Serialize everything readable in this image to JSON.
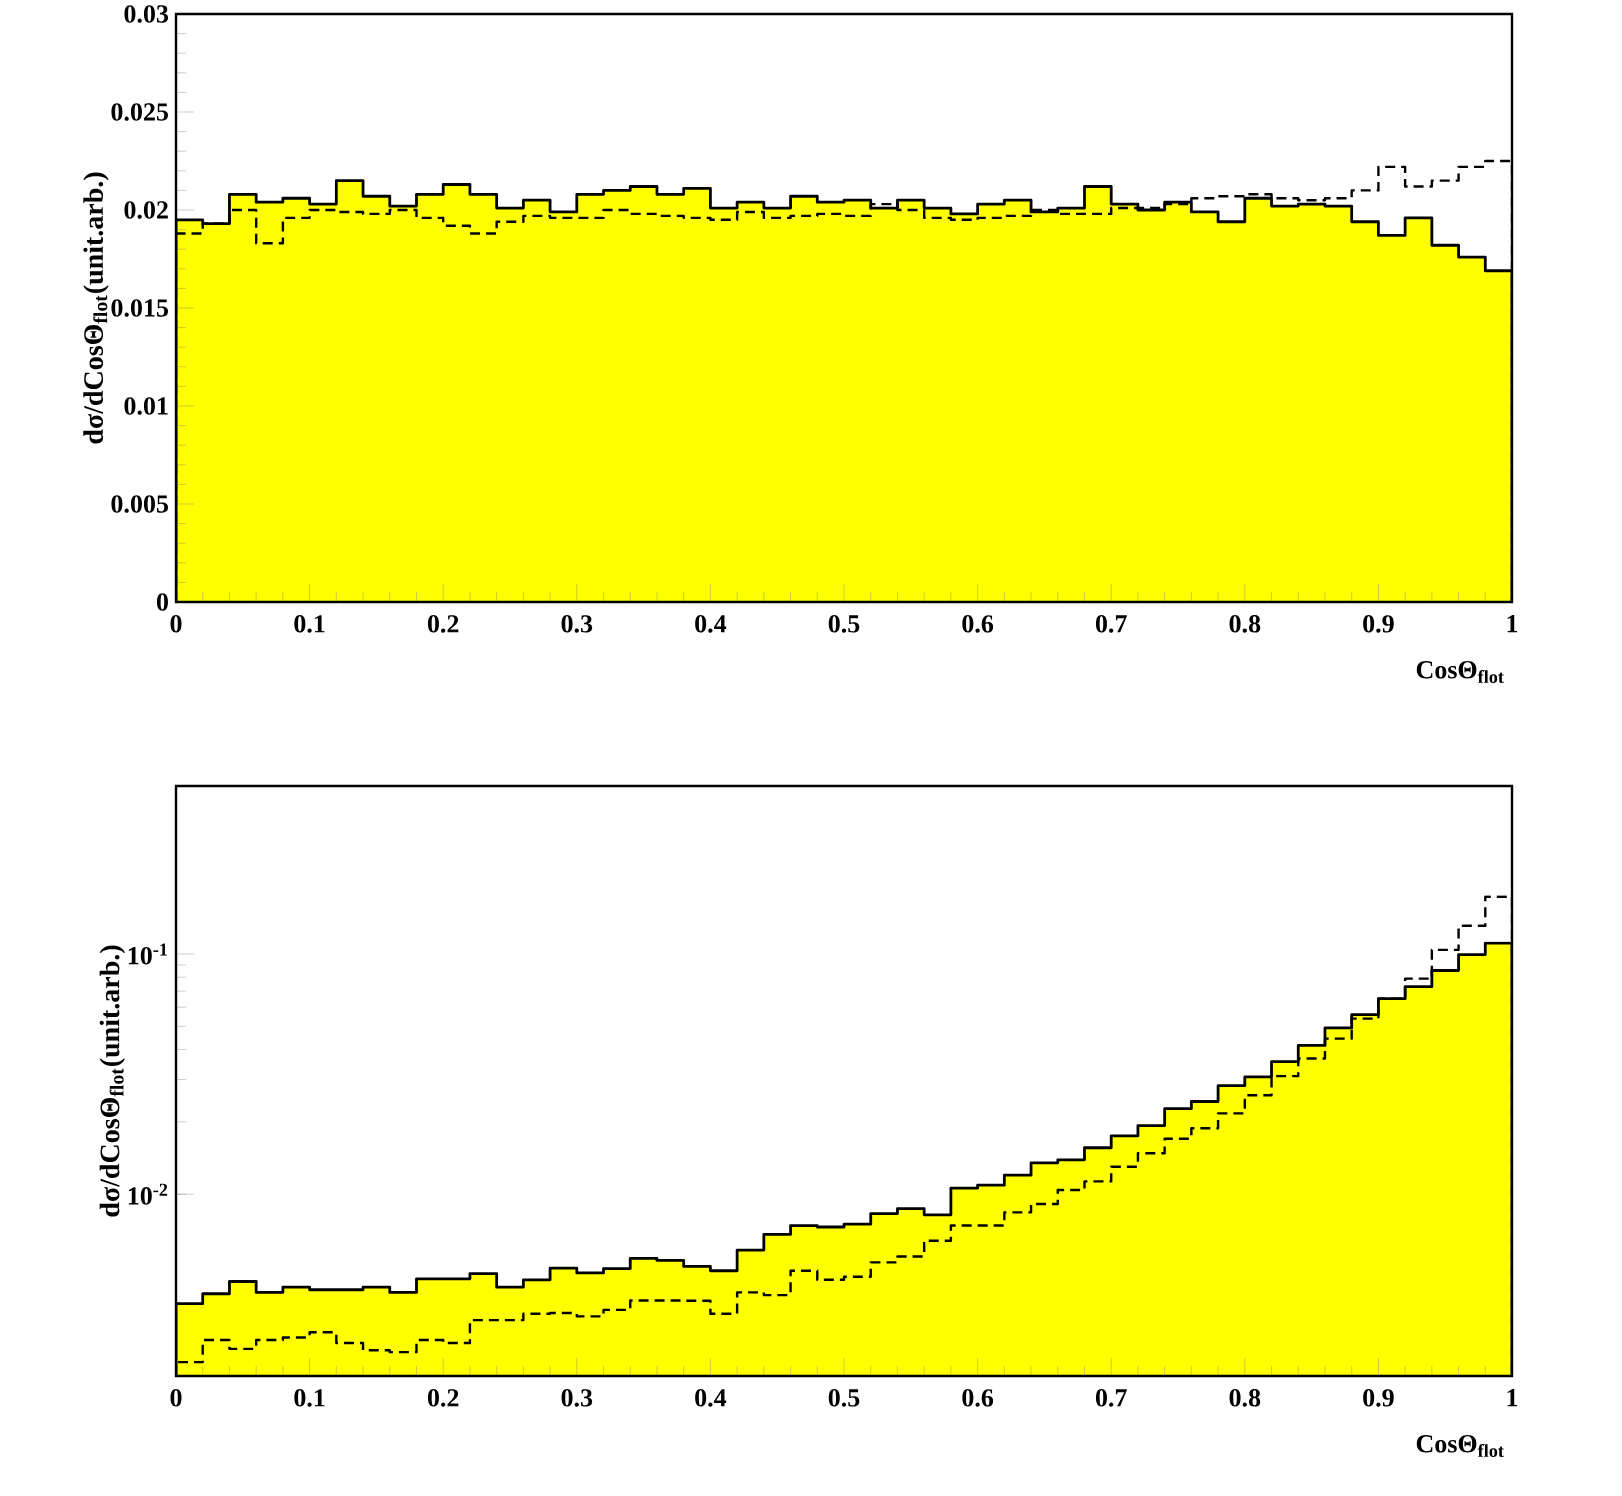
{
  "chart_data": [
    {
      "type": "histogram",
      "xlabel": "CosΘ$_{flot}$",
      "ylabel": "dσ/dCosΘ$_{flot}$(unit.arb.)",
      "bins": [
        0,
        0.02,
        0.04,
        0.06,
        0.08,
        0.1,
        0.12,
        0.14,
        0.16,
        0.18,
        0.2,
        0.22,
        0.24,
        0.26,
        0.28,
        0.3,
        0.32,
        0.34,
        0.36,
        0.38,
        0.4,
        0.42,
        0.44,
        0.46,
        0.48,
        0.5,
        0.52,
        0.54,
        0.56,
        0.58,
        0.6,
        0.62,
        0.64,
        0.66,
        0.68,
        0.7,
        0.72,
        0.74,
        0.76,
        0.78,
        0.8,
        0.82,
        0.84,
        0.86,
        0.88,
        0.9,
        0.92,
        0.94,
        0.96,
        0.98,
        1.0
      ],
      "series": [
        {
          "color": "#ffff00",
          "line_style": "solid",
          "values": [
            0.0195,
            0.0193,
            0.0208,
            0.0204,
            0.0206,
            0.0203,
            0.0215,
            0.0207,
            0.0202,
            0.0208,
            0.0213,
            0.0208,
            0.0201,
            0.0205,
            0.0199,
            0.0208,
            0.021,
            0.0212,
            0.0208,
            0.0211,
            0.0201,
            0.0204,
            0.0201,
            0.0207,
            0.0204,
            0.0205,
            0.0201,
            0.0205,
            0.0201,
            0.0198,
            0.0203,
            0.0205,
            0.0199,
            0.0201,
            0.0212,
            0.0203,
            0.02,
            0.0204,
            0.0199,
            0.0194,
            0.0206,
            0.0202,
            0.0203,
            0.0202,
            0.0194,
            0.0187,
            0.0196,
            0.0182,
            0.0176,
            0.0169
          ]
        },
        {
          "color": "#000000",
          "line_style": "dashed",
          "values": [
            0.0188,
            0.0193,
            0.02,
            0.0183,
            0.0196,
            0.02,
            0.0199,
            0.0198,
            0.02,
            0.0196,
            0.0192,
            0.0188,
            0.0194,
            0.0197,
            0.0196,
            0.0196,
            0.02,
            0.0198,
            0.0197,
            0.0196,
            0.0195,
            0.0199,
            0.0196,
            0.0197,
            0.0198,
            0.0197,
            0.0203,
            0.02,
            0.0196,
            0.0195,
            0.0196,
            0.0197,
            0.02,
            0.0198,
            0.0198,
            0.0201,
            0.0201,
            0.0203,
            0.0206,
            0.0207,
            0.0208,
            0.0206,
            0.0205,
            0.0206,
            0.021,
            0.0222,
            0.0212,
            0.0215,
            0.0222,
            0.0225
          ]
        }
      ],
      "xlim": [
        0,
        1
      ],
      "ylim": [
        0,
        0.03
      ],
      "xticks": [
        0,
        0.1,
        0.2,
        0.3,
        0.4,
        0.5,
        0.6,
        0.7,
        0.8,
        0.9,
        1
      ],
      "yticks": [
        0,
        0.005,
        0.01,
        0.015,
        0.02,
        0.025,
        0.03
      ]
    },
    {
      "type": "histogram",
      "xlabel": "CosΘ$_{flot}$",
      "ylabel": "dσ/dCosΘ$_{flot}$(unit.arb.)",
      "log": true,
      "bins": [
        0,
        0.02,
        0.04,
        0.06,
        0.08,
        0.1,
        0.12,
        0.14,
        0.16,
        0.18,
        0.2,
        0.22,
        0.24,
        0.26,
        0.28,
        0.3,
        0.32,
        0.34,
        0.36,
        0.38,
        0.4,
        0.42,
        0.44,
        0.46,
        0.48,
        0.5,
        0.52,
        0.54,
        0.56,
        0.58,
        0.6,
        0.62,
        0.64,
        0.66,
        0.68,
        0.7,
        0.72,
        0.74,
        0.76,
        0.78,
        0.8,
        0.82,
        0.84,
        0.86,
        0.88,
        0.9,
        0.92,
        0.94,
        0.96,
        0.98,
        1.0
      ],
      "series": [
        {
          "color": "#ffff00",
          "line_style": "solid",
          "values": [
            0.0035,
            0.00385,
            0.00433,
            0.0039,
            0.0041,
            0.004,
            0.004,
            0.0041,
            0.0039,
            0.00444,
            0.00444,
            0.00467,
            0.0041,
            0.0044,
            0.00492,
            0.0047,
            0.0049,
            0.0054,
            0.0053,
            0.005,
            0.0048,
            0.00585,
            0.0068,
            0.0074,
            0.0073,
            0.0075,
            0.0083,
            0.0087,
            0.0082,
            0.0106,
            0.0109,
            0.012,
            0.0135,
            0.0139,
            0.0156,
            0.0175,
            0.0193,
            0.0227,
            0.0243,
            0.0283,
            0.0308,
            0.0356,
            0.0416,
            0.0492,
            0.0559,
            0.0651,
            0.0731,
            0.0853,
            0.0994,
            0.111
          ]
        },
        {
          "color": "#000000",
          "line_style": "dashed",
          "values": [
            0.002,
            0.00247,
            0.00227,
            0.00247,
            0.00253,
            0.00266,
            0.0024,
            0.00224,
            0.0022,
            0.00247,
            0.0024,
            0.00299,
            0.00299,
            0.00318,
            0.0032,
            0.0031,
            0.0033,
            0.00361,
            0.00361,
            0.0036,
            0.00318,
            0.0039,
            0.0038,
            0.0048,
            0.0044,
            0.00453,
            0.0052,
            0.0055,
            0.0064,
            0.0074,
            0.0074,
            0.0084,
            0.0091,
            0.0104,
            0.0113,
            0.013,
            0.0148,
            0.017,
            0.0188,
            0.0217,
            0.0258,
            0.031,
            0.0367,
            0.0444,
            0.0538,
            0.0651,
            0.0789,
            0.104,
            0.131,
            0.173
          ]
        }
      ],
      "xlim": [
        0,
        1
      ],
      "ylim": [
        0.00175,
        0.5
      ],
      "xticks": [
        0,
        0.1,
        0.2,
        0.3,
        0.4,
        0.5,
        0.6,
        0.7,
        0.8,
        0.9,
        1
      ],
      "yticks": [
        {
          "value": 0.01,
          "label": "10$^{-2}$"
        },
        {
          "value": 0.1,
          "label": "10$^{-1}$"
        }
      ]
    }
  ]
}
